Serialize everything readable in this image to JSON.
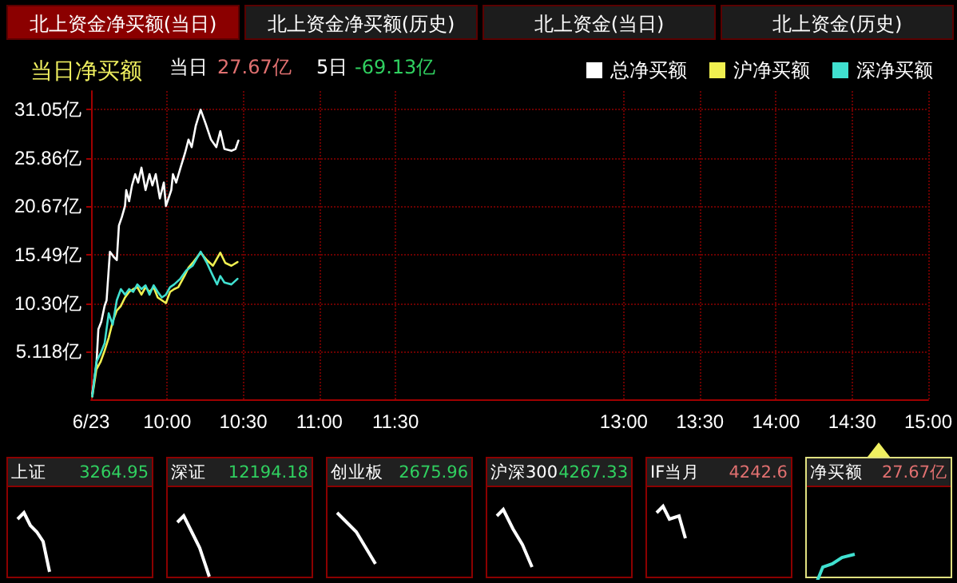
{
  "chart_data": {
    "type": "line",
    "title": "当日净买额",
    "annotations": [
      "北上资金净买额(当日)",
      "北上资金净买额(历史)",
      "北上资金(当日)",
      "北上资金(历史)",
      "当日",
      "27.67亿",
      "5日",
      "-69.13亿",
      "上证",
      "3264.95",
      "深证",
      "12194.18",
      "创业板",
      "2675.96",
      "沪深300",
      "4267.33",
      "IF当月",
      "4242.6",
      "净买额",
      "27.67亿"
    ],
    "series": [
      {
        "name": "总净买额",
        "color": "#ffffff",
        "x": [
          9.508,
          9.535,
          9.548,
          9.567,
          9.589,
          9.602,
          9.624,
          9.651,
          9.669,
          9.683,
          9.702,
          9.723,
          9.731,
          9.75,
          9.769,
          9.79,
          9.809,
          9.831,
          9.858,
          9.884,
          9.903,
          9.925,
          9.952,
          9.978,
          9.992,
          10.027,
          10.038,
          10.059,
          10.086,
          10.118,
          10.14,
          10.161,
          10.188,
          10.22,
          10.253,
          10.288,
          10.323,
          10.349,
          10.376,
          10.422,
          10.449,
          10.468
        ],
        "values": [
          0.6,
          3.7,
          7.5,
          8.3,
          10.0,
          10.6,
          15.8,
          15.2,
          14.9,
          18.6,
          19.5,
          20.7,
          22.4,
          21.2,
          22.9,
          24.1,
          23.2,
          24.8,
          22.4,
          24.1,
          22.9,
          24.1,
          21.5,
          23.2,
          20.7,
          22.4,
          24.1,
          23.2,
          24.7,
          26.4,
          27.8,
          27.0,
          29.3,
          31.0,
          29.5,
          27.8,
          27.0,
          28.7,
          26.8,
          26.6,
          26.8,
          27.7
        ]
      },
      {
        "name": "沪净买额",
        "color": "#f0f050",
        "x": [
          9.508,
          9.535,
          9.562,
          9.589,
          9.616,
          9.642,
          9.669,
          9.696,
          9.723,
          9.75,
          9.777,
          9.804,
          9.831,
          9.858,
          9.884,
          9.911,
          9.938,
          9.965,
          9.992,
          10.019,
          10.046,
          10.073,
          10.113,
          10.14,
          10.167,
          10.22,
          10.261,
          10.301,
          10.349,
          10.382,
          10.422,
          10.462
        ],
        "values": [
          0.3,
          3.2,
          4.0,
          5.2,
          6.6,
          8.3,
          9.5,
          10.0,
          10.9,
          11.5,
          11.8,
          12.0,
          11.2,
          12.0,
          11.5,
          12.0,
          10.9,
          10.6,
          10.3,
          11.5,
          11.8,
          12.0,
          13.2,
          14.1,
          14.6,
          15.7,
          14.9,
          14.3,
          15.7,
          14.6,
          14.3,
          14.7
        ]
      },
      {
        "name": "深净买额",
        "color": "#40e0d0",
        "x": [
          9.508,
          9.535,
          9.562,
          9.589,
          9.616,
          9.642,
          9.669,
          9.696,
          9.723,
          9.75,
          9.777,
          9.804,
          9.831,
          9.858,
          9.884,
          9.911,
          9.938,
          9.965,
          9.992,
          10.019,
          10.046,
          10.086,
          10.126,
          10.167,
          10.22,
          10.261,
          10.301,
          10.328,
          10.349,
          10.376,
          10.422,
          10.462
        ],
        "values": [
          0.3,
          4.0,
          4.9,
          6.0,
          9.2,
          8.0,
          10.6,
          11.8,
          11.2,
          11.8,
          11.5,
          12.3,
          11.8,
          12.2,
          11.2,
          12.2,
          11.5,
          10.9,
          11.2,
          12.0,
          12.3,
          12.9,
          13.8,
          14.3,
          15.8,
          14.6,
          13.2,
          12.3,
          13.2,
          12.5,
          12.3,
          12.9
        ]
      }
    ],
    "xlim": [
      9.5,
      15
    ],
    "xticks": [
      {
        "value": 9.5,
        "label": "6/23"
      },
      {
        "value": 10,
        "label": "10:00"
      },
      {
        "value": 10.5,
        "label": "10:30"
      },
      {
        "value": 11,
        "label": "11:00"
      },
      {
        "value": 11.5,
        "label": "11:30"
      },
      {
        "value": 13,
        "label": "13:00"
      },
      {
        "value": 13.5,
        "label": "13:30"
      },
      {
        "value": 14,
        "label": "14:00"
      },
      {
        "value": 14.5,
        "label": "14:30"
      },
      {
        "value": 15,
        "label": "15:00"
      }
    ],
    "ylim": [
      0,
      33
    ],
    "yticks": [
      {
        "value": 5.118,
        "label": "5.118亿"
      },
      {
        "value": 10.3,
        "label": "10.30亿"
      },
      {
        "value": 15.49,
        "label": "15.49亿"
      },
      {
        "value": 20.67,
        "label": "20.67亿"
      },
      {
        "value": 25.86,
        "label": "25.86亿"
      },
      {
        "value": 31.05,
        "label": "31.05亿"
      }
    ],
    "grid": true,
    "legend": "top right",
    "marker": "none",
    "line_style": "solid"
  }
}
